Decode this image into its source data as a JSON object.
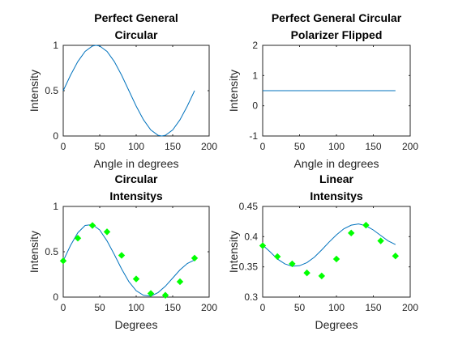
{
  "figure": {
    "background": "#ffffff",
    "line_color": "#0072bd",
    "marker_color": "#00ff00",
    "axis_color": "#262626"
  },
  "chart_data": [
    {
      "type": "line",
      "title": [
        "Perfect General",
        "Circular"
      ],
      "xlabel": "Angle in degrees",
      "ylabel": "Intensity",
      "xlim": [
        0,
        200
      ],
      "ylim": [
        0,
        1
      ],
      "xticks": [
        0,
        50,
        100,
        150,
        200
      ],
      "yticks": [
        0,
        0.5,
        1
      ],
      "grid": false,
      "series": [
        {
          "kind": "line",
          "x": [
            0,
            10,
            20,
            30,
            40,
            45,
            50,
            60,
            70,
            80,
            90,
            100,
            110,
            120,
            130,
            135,
            140,
            150,
            160,
            170,
            180
          ],
          "y": [
            0.5,
            0.671,
            0.821,
            0.933,
            0.992,
            1.0,
            0.992,
            0.933,
            0.821,
            0.671,
            0.5,
            0.329,
            0.179,
            0.067,
            0.008,
            0.0,
            0.008,
            0.067,
            0.179,
            0.329,
            0.5
          ]
        }
      ]
    },
    {
      "type": "line",
      "title": [
        "Perfect General Circular",
        "Polarizer Flipped"
      ],
      "xlabel": "Angle in degrees",
      "ylabel": "Intensity",
      "xlim": [
        0,
        200
      ],
      "ylim": [
        -1,
        2
      ],
      "xticks": [
        0,
        50,
        100,
        150,
        200
      ],
      "yticks": [
        -1,
        0,
        1,
        2
      ],
      "grid": false,
      "series": [
        {
          "kind": "line",
          "x": [
            0,
            180
          ],
          "y": [
            0.5,
            0.5
          ]
        }
      ]
    },
    {
      "type": "scatter",
      "title": [
        "Circular",
        "Intensitys"
      ],
      "xlabel": "Degrees",
      "ylabel": "Intensity",
      "xlim": [
        0,
        200
      ],
      "ylim": [
        0,
        1
      ],
      "xticks": [
        0,
        50,
        100,
        150,
        200
      ],
      "yticks": [
        0,
        0.5,
        1
      ],
      "grid": false,
      "series": [
        {
          "kind": "line",
          "x": [
            0,
            10,
            20,
            30,
            40,
            50,
            60,
            70,
            80,
            90,
            100,
            110,
            120,
            130,
            140,
            150,
            160,
            170,
            180
          ],
          "y": [
            0.4,
            0.57,
            0.71,
            0.79,
            0.8,
            0.74,
            0.62,
            0.47,
            0.31,
            0.17,
            0.07,
            0.02,
            0.01,
            0.05,
            0.12,
            0.21,
            0.3,
            0.37,
            0.41
          ]
        },
        {
          "kind": "markers",
          "x": [
            0,
            20,
            40,
            60,
            80,
            100,
            120,
            140,
            160,
            180
          ],
          "y": [
            0.4,
            0.65,
            0.79,
            0.72,
            0.46,
            0.2,
            0.04,
            0.02,
            0.17,
            0.43
          ]
        }
      ]
    },
    {
      "type": "scatter",
      "title": [
        "Linear",
        "Intensitys"
      ],
      "xlabel": "Degrees",
      "ylabel": "Intensity",
      "xlim": [
        0,
        200
      ],
      "ylim": [
        0.3,
        0.45
      ],
      "xticks": [
        0,
        50,
        100,
        150,
        200
      ],
      "yticks": [
        0.3,
        0.35,
        0.4,
        0.45
      ],
      "grid": false,
      "series": [
        {
          "kind": "line",
          "x": [
            0,
            10,
            20,
            30,
            40,
            50,
            60,
            70,
            80,
            90,
            100,
            110,
            120,
            130,
            140,
            150,
            160,
            170,
            180
          ],
          "y": [
            0.386,
            0.375,
            0.363,
            0.355,
            0.351,
            0.352,
            0.357,
            0.366,
            0.378,
            0.391,
            0.403,
            0.413,
            0.419,
            0.421,
            0.418,
            0.411,
            0.402,
            0.393,
            0.387
          ]
        },
        {
          "kind": "markers",
          "x": [
            0,
            20,
            40,
            60,
            80,
            100,
            120,
            140,
            160,
            180
          ],
          "y": [
            0.385,
            0.367,
            0.355,
            0.34,
            0.335,
            0.363,
            0.406,
            0.419,
            0.393,
            0.368
          ]
        }
      ]
    }
  ]
}
